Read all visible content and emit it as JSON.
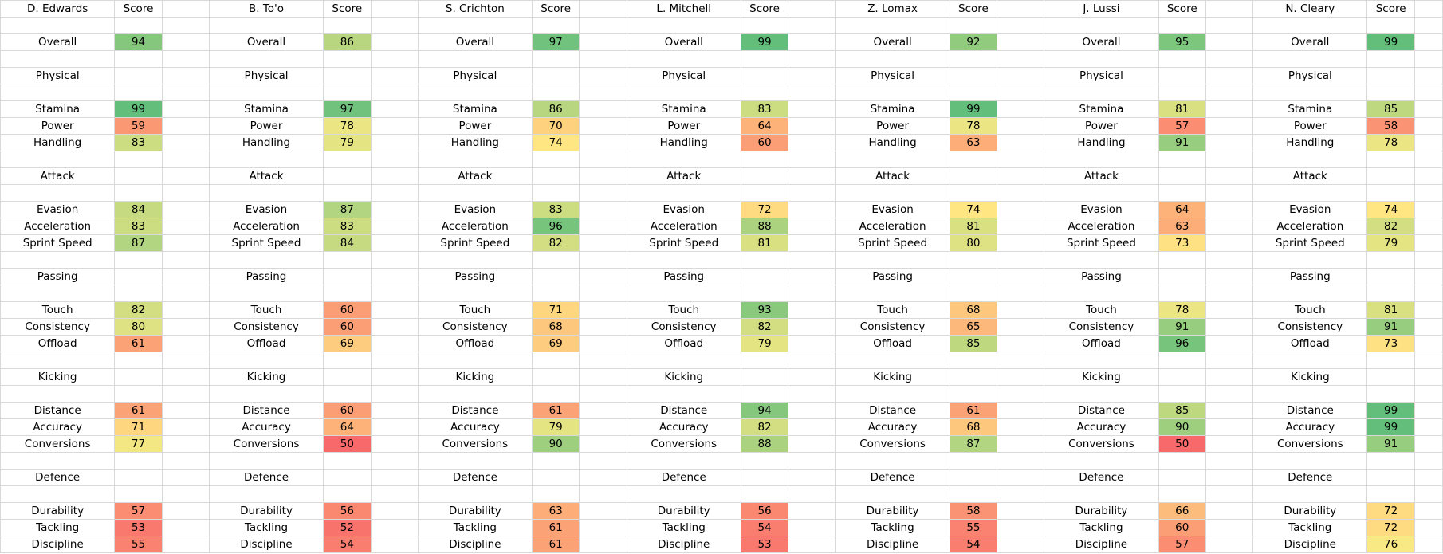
{
  "score_header": "Score",
  "overall_label": "Overall",
  "section_labels": [
    "Physical",
    "Attack",
    "Passing",
    "Kicking",
    "Defence"
  ],
  "stat_labels": [
    [
      "Stamina",
      "Power",
      "Handling"
    ],
    [
      "Evasion",
      "Acceleration",
      "Sprint Speed"
    ],
    [
      "Touch",
      "Consistency",
      "Offload"
    ],
    [
      "Distance",
      "Accuracy",
      "Conversions"
    ],
    [
      "Durability",
      "Tackling",
      "Discipline"
    ]
  ],
  "players": [
    {
      "name": "D. Edwards",
      "overall": 94,
      "stats": [
        [
          99,
          59,
          83
        ],
        [
          84,
          83,
          87
        ],
        [
          82,
          80,
          61
        ],
        [
          61,
          71,
          77
        ],
        [
          57,
          53,
          55
        ]
      ]
    },
    {
      "name": "B. To'o",
      "overall": 86,
      "stats": [
        [
          97,
          78,
          79
        ],
        [
          87,
          83,
          84
        ],
        [
          60,
          60,
          69
        ],
        [
          60,
          64,
          50
        ],
        [
          56,
          52,
          54
        ]
      ]
    },
    {
      "name": "S. Crichton",
      "overall": 97,
      "stats": [
        [
          86,
          70,
          74
        ],
        [
          83,
          96,
          82
        ],
        [
          71,
          68,
          69
        ],
        [
          61,
          79,
          90
        ],
        [
          63,
          61,
          61
        ]
      ]
    },
    {
      "name": "L. Mitchell",
      "overall": 99,
      "stats": [
        [
          83,
          64,
          60
        ],
        [
          72,
          88,
          81
        ],
        [
          93,
          82,
          79
        ],
        [
          94,
          82,
          88
        ],
        [
          56,
          54,
          53
        ]
      ]
    },
    {
      "name": "Z. Lomax",
      "overall": 92,
      "stats": [
        [
          99,
          78,
          63
        ],
        [
          74,
          81,
          80
        ],
        [
          68,
          65,
          85
        ],
        [
          61,
          68,
          87
        ],
        [
          58,
          55,
          54
        ]
      ]
    },
    {
      "name": "J. Lussi",
      "overall": 95,
      "stats": [
        [
          81,
          57,
          91
        ],
        [
          64,
          63,
          73
        ],
        [
          78,
          91,
          96
        ],
        [
          85,
          90,
          50
        ],
        [
          66,
          60,
          57
        ]
      ]
    },
    {
      "name": "N. Cleary",
      "overall": 99,
      "stats": [
        [
          85,
          58,
          78
        ],
        [
          74,
          82,
          79
        ],
        [
          81,
          91,
          73
        ],
        [
          99,
          99,
          91
        ],
        [
          72,
          72,
          76
        ]
      ]
    }
  ],
  "colors": {
    "red": "#f8696b",
    "yellow": "#ffeb84",
    "green": "#63be7b",
    "gridline": "#d9d9d9"
  }
}
